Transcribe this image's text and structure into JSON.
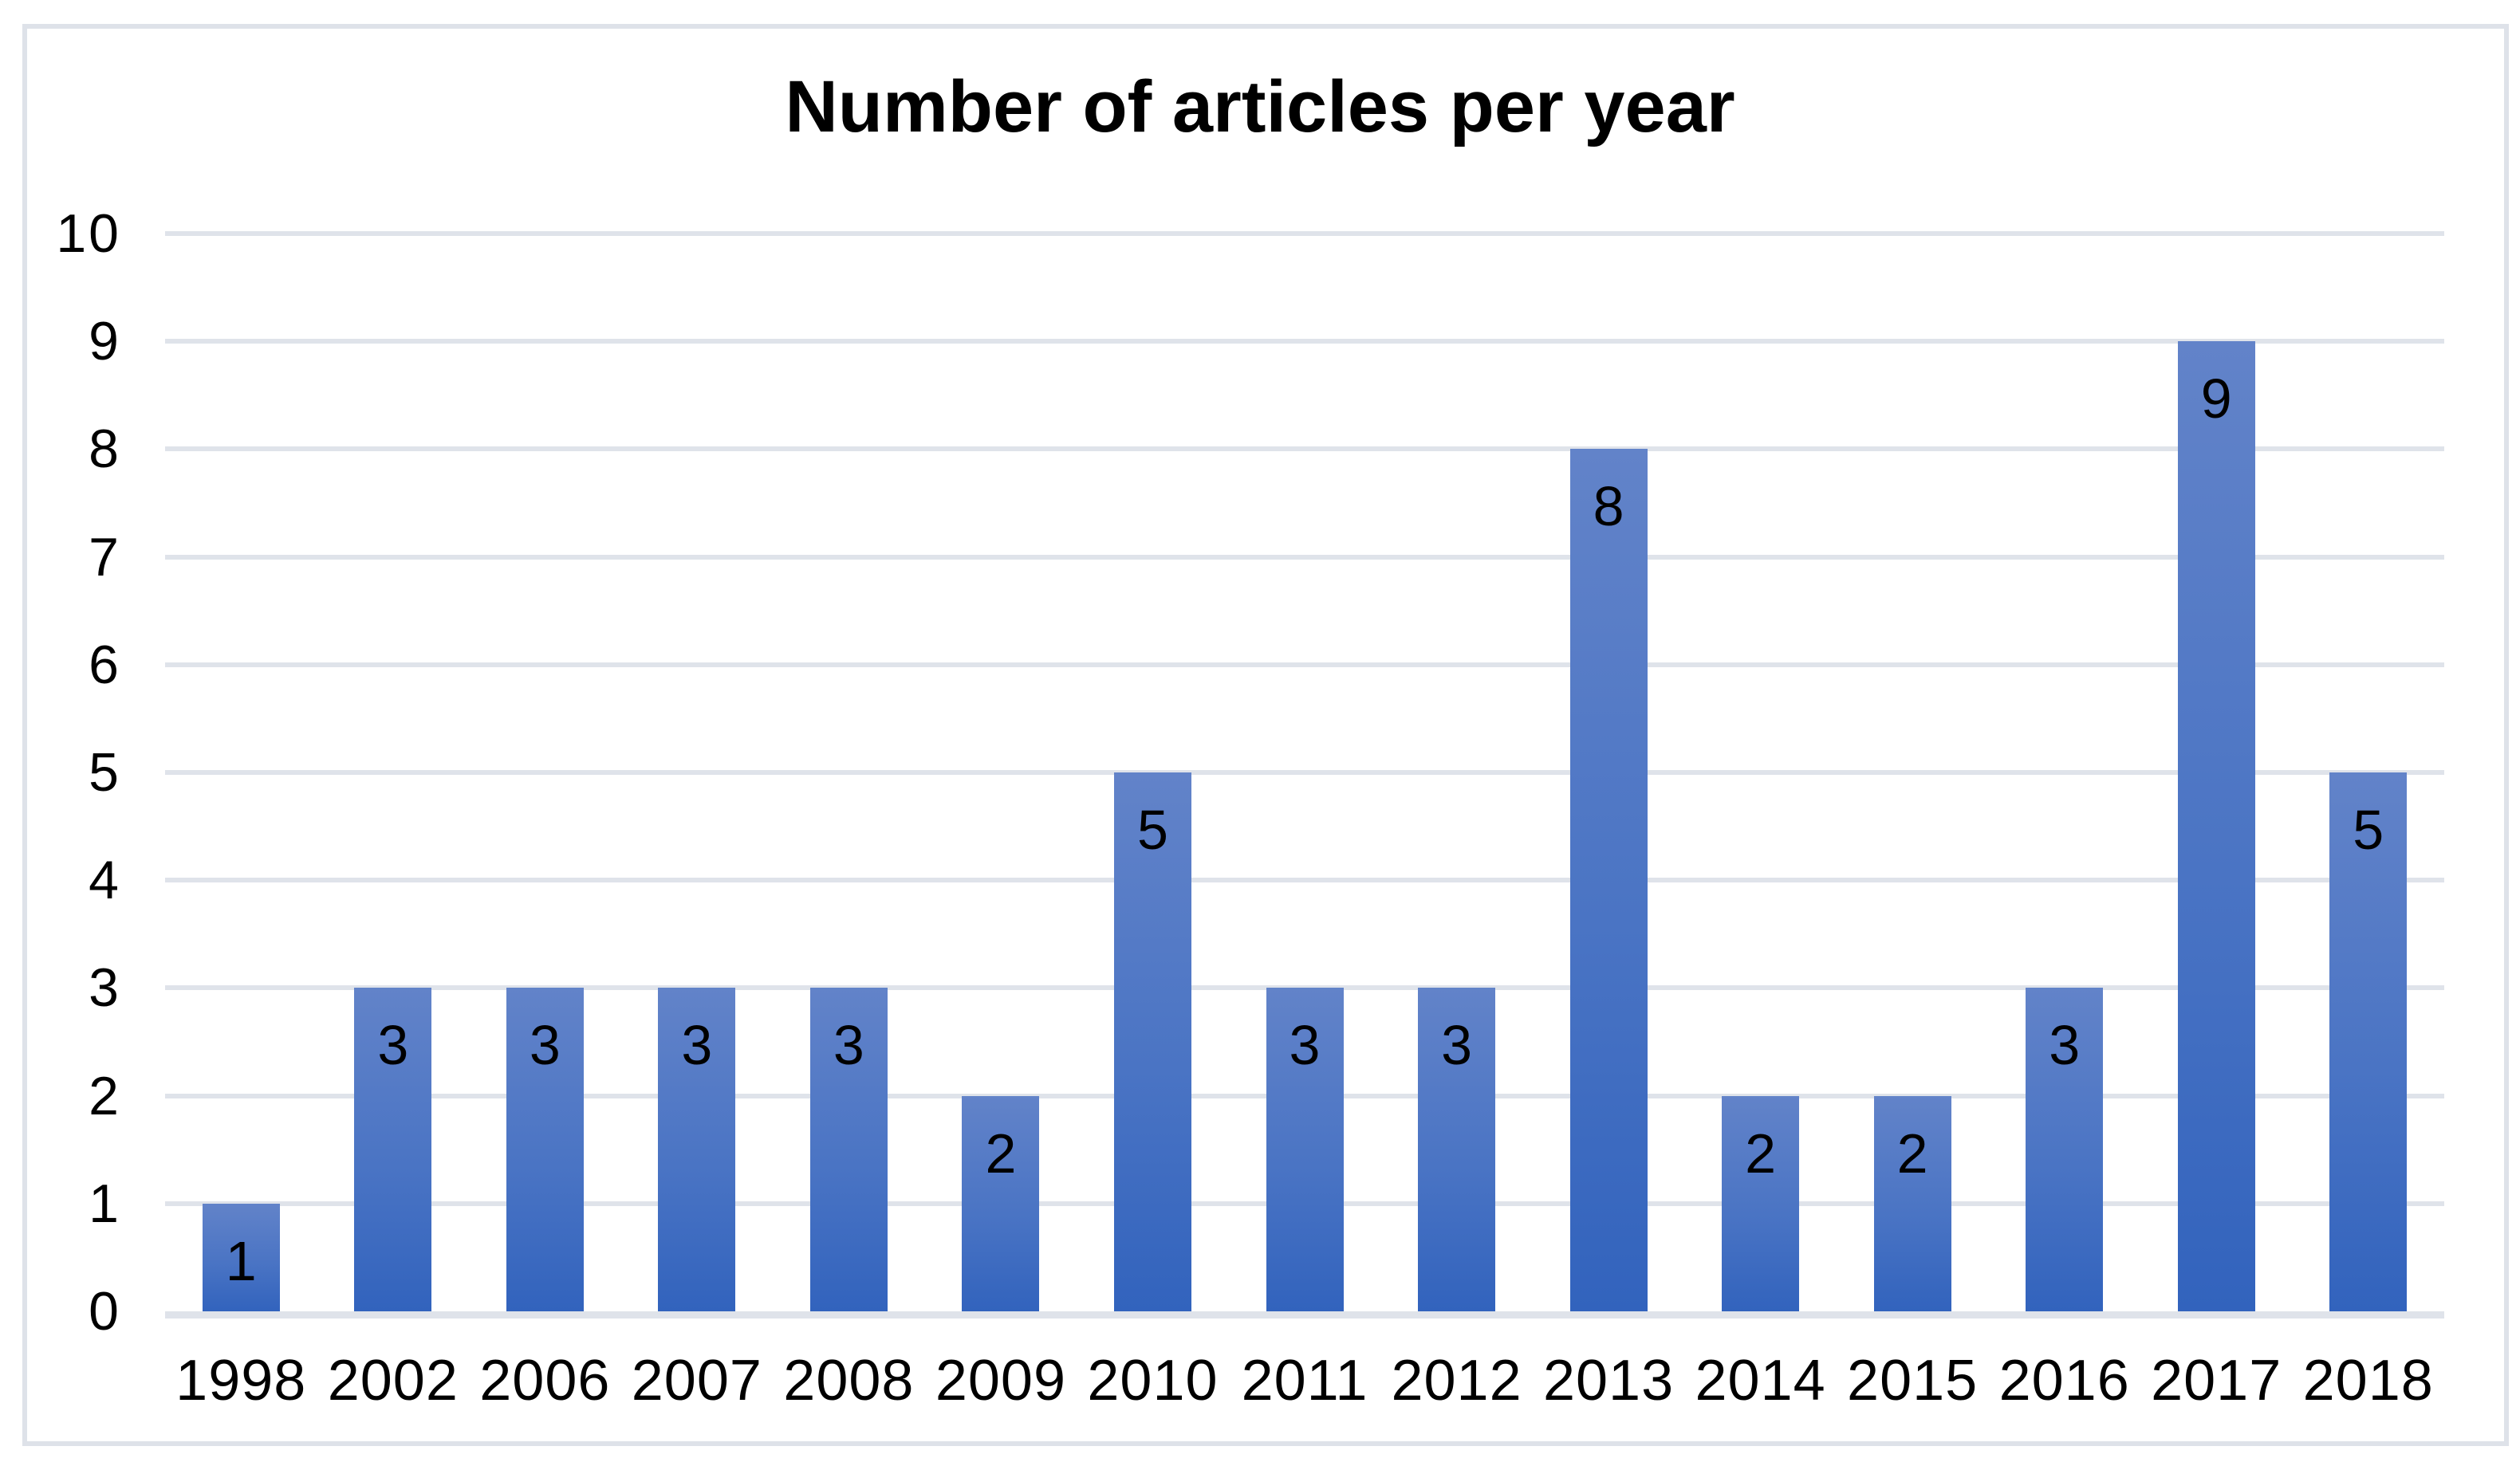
{
  "chart_data": {
    "type": "bar",
    "title": "Number of articles per year",
    "categories": [
      "1998",
      "2002",
      "2006",
      "2007",
      "2008",
      "2009",
      "2010",
      "2011",
      "2012",
      "2013",
      "2014",
      "2015",
      "2016",
      "2017",
      "2018"
    ],
    "values": [
      1,
      3,
      3,
      3,
      3,
      2,
      5,
      3,
      3,
      8,
      2,
      2,
      3,
      9,
      5
    ],
    "data_labels": [
      1,
      3,
      3,
      3,
      3,
      2,
      5,
      3,
      3,
      8,
      2,
      2,
      3,
      9,
      5
    ],
    "xlabel": "",
    "ylabel": "",
    "ylim": [
      0,
      10
    ],
    "yticks": [
      0,
      1,
      2,
      3,
      4,
      5,
      6,
      7,
      8,
      9,
      10
    ],
    "grid": true,
    "legend": false,
    "colors": {
      "bar_gradient_top": "#6283c9",
      "bar_gradient_bottom": "#3263bd",
      "gridline": "#dfe3ea",
      "chart_border": "#dee2e9",
      "text": "#000000",
      "background": "#ffffff"
    }
  }
}
